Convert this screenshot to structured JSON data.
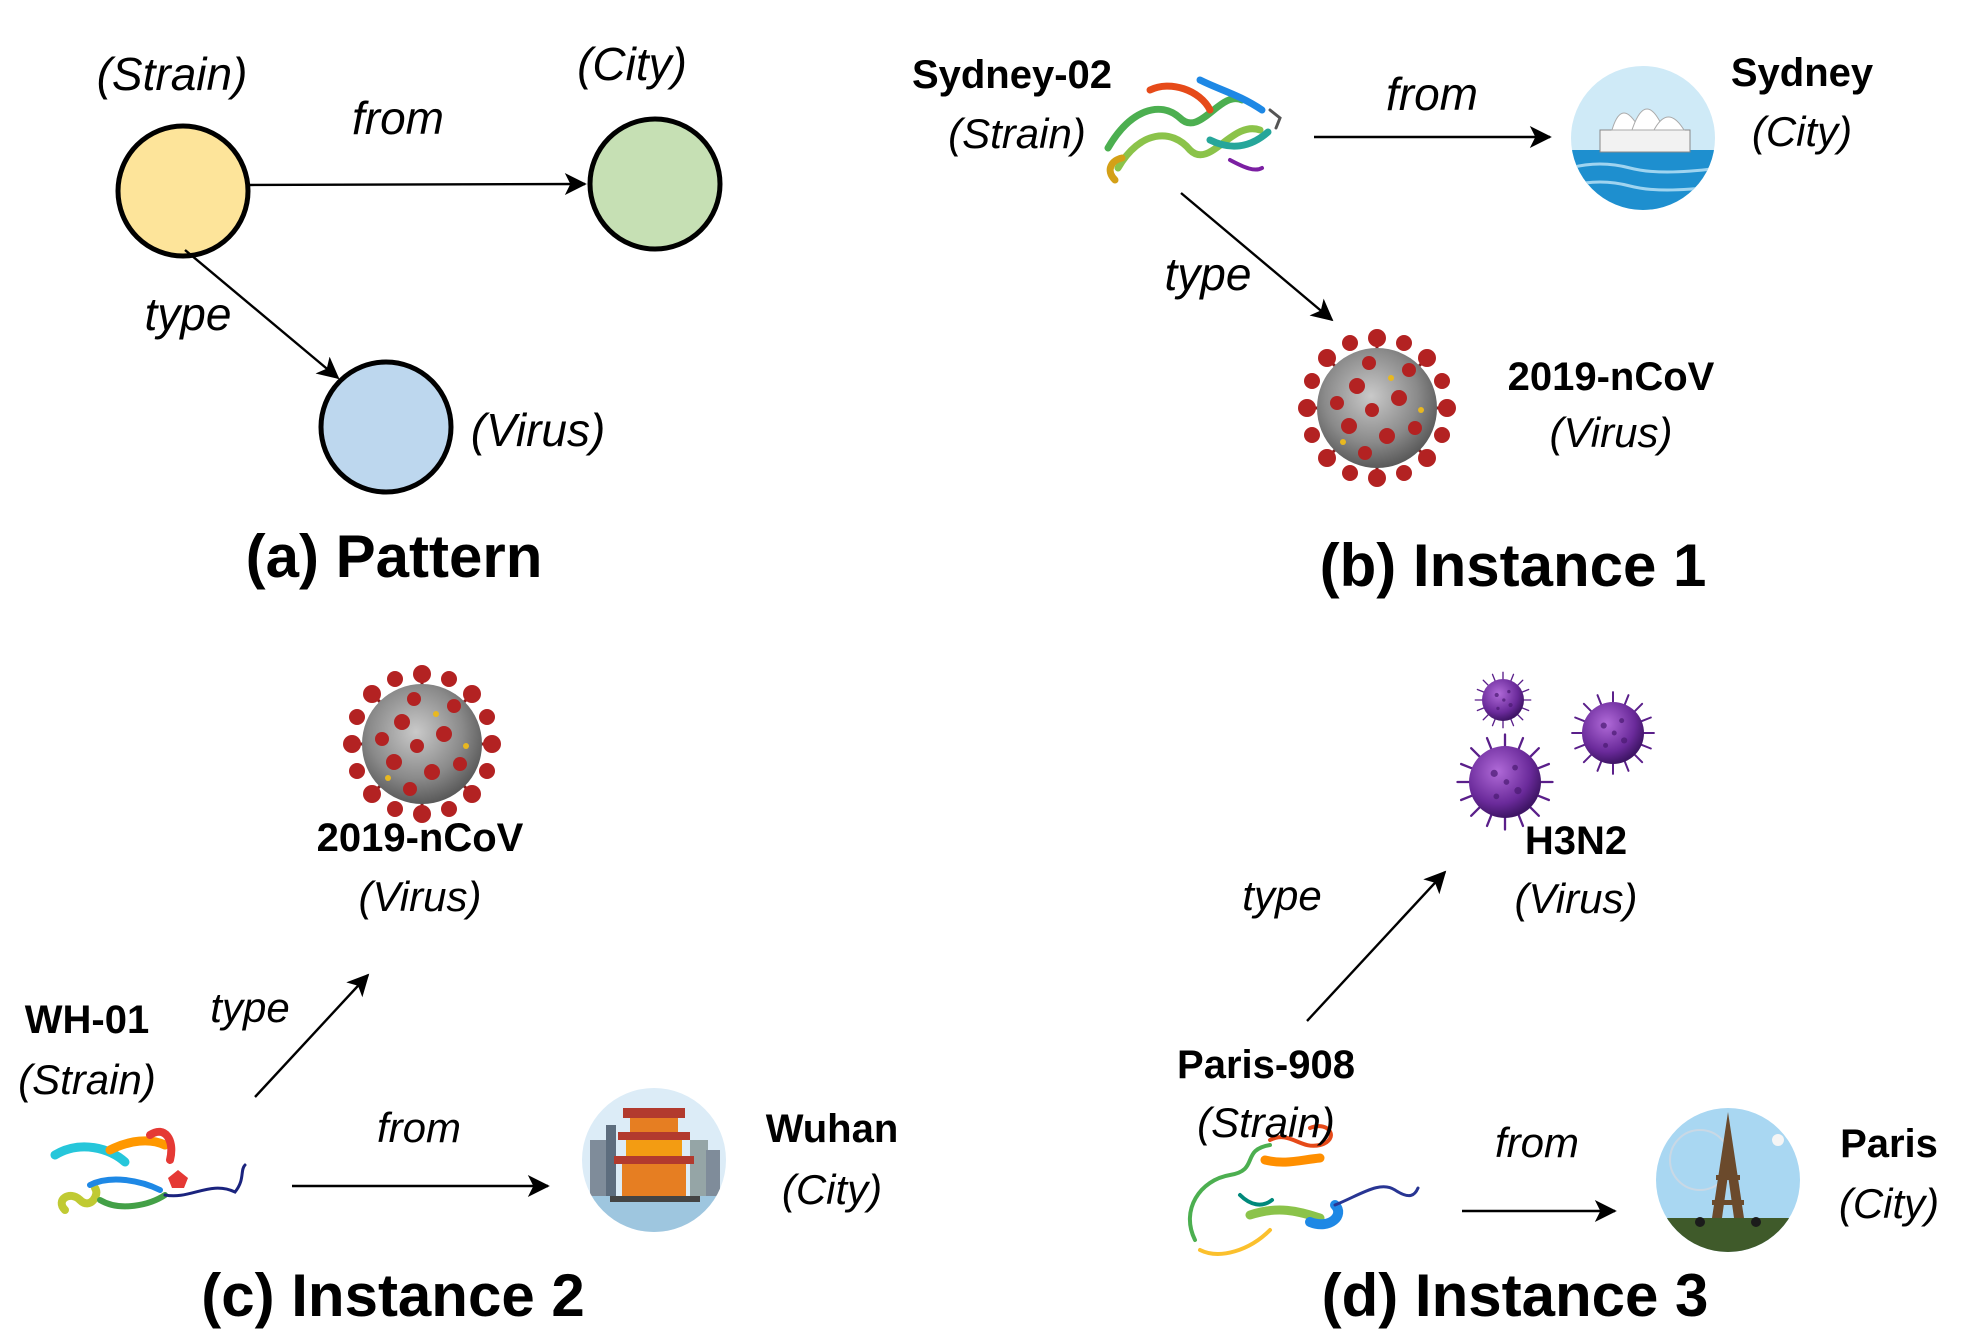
{
  "pattern": {
    "strain_label": "(Strain)",
    "city_label": "(City)",
    "virus_label": "(Virus)",
    "from_label": "from",
    "type_label": "type",
    "caption": "(a) Pattern",
    "colors": {
      "strain": "#fde49a",
      "city": "#c6e0b4",
      "virus": "#bdd7ee"
    }
  },
  "instance1": {
    "strain_name": "Sydney-02",
    "strain_label": "(Strain)",
    "city_name": "Sydney",
    "city_label": "(City)",
    "virus_name": "2019-nCoV",
    "virus_label": "(Virus)",
    "from_label": "from",
    "type_label": "type",
    "caption": "(b) Instance 1",
    "icons": {
      "strain": "protein-ribbon-icon",
      "city": "sydney-opera-house-icon",
      "virus": "coronavirus-icon"
    }
  },
  "instance2": {
    "virus_name": "2019-nCoV",
    "virus_label": "(Virus)",
    "strain_name": "WH-01",
    "strain_label": "(Strain)",
    "city_name": "Wuhan",
    "city_label": "(City)",
    "from_label": "from",
    "type_label": "type",
    "caption": "(c) Instance 2",
    "icons": {
      "strain": "protein-ribbon-icon",
      "city": "wuhan-skyline-icon",
      "virus": "coronavirus-icon"
    }
  },
  "instance3": {
    "virus_name": "H3N2",
    "virus_label": "(Virus)",
    "strain_name": "Paris-908",
    "strain_label": "(Strain)",
    "city_name": "Paris",
    "city_label": "(City)",
    "from_label": "from",
    "type_label": "type",
    "caption": "(d) Instance 3",
    "icons": {
      "strain": "protein-ribbon-icon",
      "city": "eiffel-tower-icon",
      "virus": "influenza-virus-icon"
    }
  }
}
